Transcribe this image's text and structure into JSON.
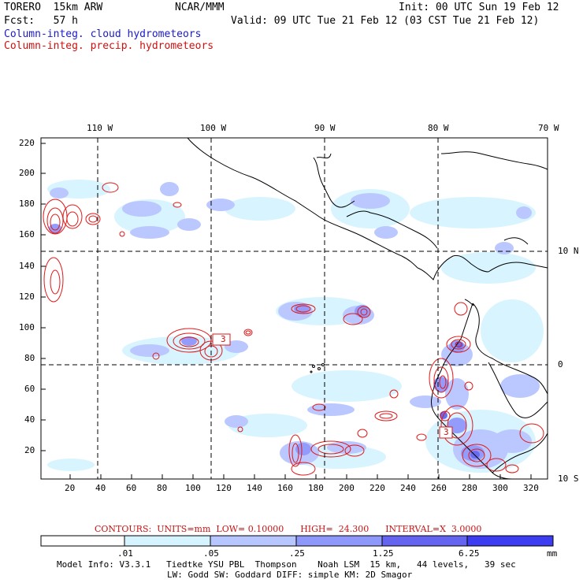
{
  "header": {
    "model": "TORERO  15km ARW",
    "org": "NCAR/MMM",
    "init": "Init: 00 UTC Sun 19 Feb 12",
    "fcst": "Fcst:   57 h",
    "valid": "Valid: 09 UTC Tue 21 Feb 12 (03 CST Tue 21 Feb 12)",
    "field_cloud": "Column-integ. cloud hydrometeors",
    "field_precip": "Column-integ. precip. hydrometeors"
  },
  "map": {
    "lon_labels": [
      "110 W",
      "100 W",
      "90 W",
      "80 W",
      "70 W"
    ],
    "lat_labels": [
      "10 N",
      "0",
      "10 S"
    ],
    "y_ticks": [
      "220",
      "200",
      "180",
      "160",
      "140",
      "120",
      "100",
      "80",
      "60",
      "40",
      "20"
    ],
    "x_ticks": [
      "20",
      "40",
      "60",
      "80",
      "100",
      "120",
      "140",
      "160",
      "180",
      "200",
      "220",
      "240",
      "260",
      "280",
      "300",
      "320"
    ],
    "contour_labels": [
      "3",
      "3"
    ]
  },
  "contour_info": {
    "units": "CONTOURS:  UNITS=mm  LOW= 0.10000      HIGH=  24.300      INTERVAL=X  3.0000"
  },
  "colorbar": {
    "labels": [
      ".01",
      ".05",
      ".25",
      "1.25",
      "6.25"
    ],
    "unit": "mm",
    "colors": [
      "#ffffff",
      "#d6f4ff",
      "#b8c6ff",
      "#8e97fa",
      "#6464f0",
      "#3c3cf0"
    ]
  },
  "footer": {
    "line1": "Model Info: V3.3.1   Tiedtke YSU PBL  Thompson    Noah LSM  15 km,   44 levels,   39 sec",
    "line2": "LW: Godd SW: Goddard DIFF: simple KM: 2D Smagor"
  }
}
